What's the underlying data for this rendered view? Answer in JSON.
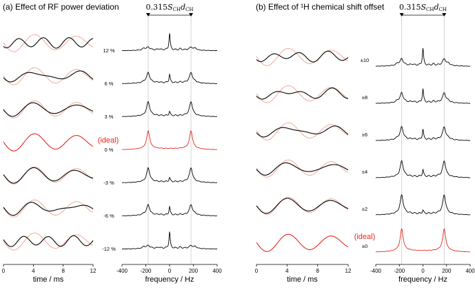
{
  "colors": {
    "experiment": "#000000",
    "ideal": "#e8261c",
    "simulation": "#f0a090",
    "guide": "#c8c8c8"
  },
  "chart_data": [
    {
      "type": "line",
      "panel": "a",
      "title": "(a) Effect of RF power deviation",
      "annotation": {
        "coef": "0.315",
        "S": "S",
        "Ssub": "CH",
        "d": "d",
        "dsub": "CH"
      },
      "time_axis": {
        "xlabel": "time / ms",
        "xlim": [
          0,
          12
        ],
        "ticks": [
          "0",
          "4",
          "8",
          "12"
        ]
      },
      "freq_axis": {
        "xlabel": "frequency / Hz",
        "xlim": [
          -400,
          400
        ],
        "ticks": [
          "-400",
          "-200",
          "0",
          "200",
          "400"
        ]
      },
      "coupling_hz": 180,
      "ideal_label": "(ideal)",
      "rows": [
        {
          "label": "12 %",
          "delta": 0.12,
          "ideal": false
        },
        {
          "label": "6 %",
          "delta": 0.06,
          "ideal": false
        },
        {
          "label": "3 %",
          "delta": 0.03,
          "ideal": false
        },
        {
          "label": "0 %",
          "delta": 0.0,
          "ideal": true
        },
        {
          "label": "-3 %",
          "delta": -0.03,
          "ideal": false
        },
        {
          "label": "-6 %",
          "delta": -0.06,
          "ideal": false
        },
        {
          "label": "-12 %",
          "delta": -0.12,
          "ideal": false
        }
      ]
    },
    {
      "type": "line",
      "panel": "b",
      "title": "(b) Effect of ¹H chemical shift offset",
      "annotation": {
        "coef": "0.315",
        "S": "S",
        "Ssub": "CH",
        "d": "d",
        "dsub": "CH"
      },
      "time_axis": {
        "xlabel": "time / ms",
        "xlim": [
          0,
          12
        ],
        "ticks": [
          "0",
          "4",
          "8",
          "12"
        ]
      },
      "freq_axis": {
        "xlabel": "frequency / Hz",
        "xlim": [
          -400,
          400
        ],
        "ticks": [
          "-400",
          "-200",
          "0",
          "200",
          "400"
        ]
      },
      "coupling_hz": 180,
      "ideal_label": "(ideal)",
      "rows": [
        {
          "label": "±10",
          "delta": 0.1,
          "ideal": false
        },
        {
          "label": "±8",
          "delta": 0.08,
          "ideal": false
        },
        {
          "label": "±6",
          "delta": 0.06,
          "ideal": false
        },
        {
          "label": "±4",
          "delta": 0.04,
          "ideal": false
        },
        {
          "label": "±2",
          "delta": 0.02,
          "ideal": false
        },
        {
          "label": "±0",
          "delta": 0.0,
          "ideal": true
        }
      ]
    }
  ]
}
